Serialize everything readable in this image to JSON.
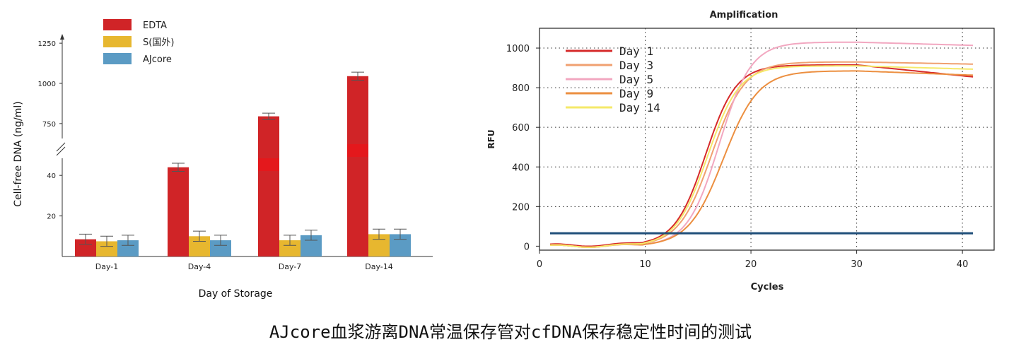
{
  "caption": "AJcore血浆游离DNA常温保存管对cfDNA保存稳定性时间的测试",
  "chart_data": [
    {
      "type": "bar",
      "title": "",
      "xlabel": "Day of Storage",
      "ylabel": "Cell-free DNA  (ng/ml)",
      "categories": [
        "Day-1",
        "Day-4",
        "Day-7",
        "Day-14"
      ],
      "axis_break": true,
      "lower_ticks": [
        "20",
        "40"
      ],
      "upper_ticks": [
        "750",
        "1000",
        "1250"
      ],
      "series": [
        {
          "name": "EDTA",
          "color": "#d02427",
          "values": [
            8.5,
            44,
            795,
            1045
          ],
          "errors": [
            2.5,
            2,
            20,
            25
          ]
        },
        {
          "name": "S(国外)",
          "color": "#e7b72f",
          "values": [
            7.5,
            10,
            8,
            11
          ],
          "errors": [
            2.5,
            2.5,
            2.5,
            2.5
          ]
        },
        {
          "name": "AJcore",
          "color": "#5b9bc4",
          "values": [
            8,
            8,
            10.5,
            11
          ],
          "errors": [
            2.5,
            2.5,
            2.5,
            2.5
          ]
        }
      ],
      "legend_position": "top-left"
    },
    {
      "type": "line",
      "title": "Amplification",
      "xlabel": "Cycles",
      "ylabel": "RFU",
      "x_ticks": [
        "0",
        "10",
        "20",
        "30",
        "40"
      ],
      "y_ticks": [
        "0",
        "200",
        "400",
        "600",
        "800",
        "1000"
      ],
      "xlim": [
        0,
        43
      ],
      "ylim": [
        -20,
        1100
      ],
      "grid": true,
      "legend_position": "top-left",
      "threshold": {
        "value": 65,
        "color": "#1f4e79"
      },
      "series": [
        {
          "name": "Day 1",
          "color": "#d62a2a",
          "baseline": 5,
          "plateau": 915,
          "midpoint": 15.7,
          "slope": 1.45,
          "drift": -1.1
        },
        {
          "name": "Day 3",
          "color": "#f0a070",
          "baseline": 0,
          "plateau": 930,
          "midpoint": 16.3,
          "slope": 1.55,
          "drift": -0.2
        },
        {
          "name": "Day 5",
          "color": "#f2a7c0",
          "baseline": 0,
          "plateau": 1030,
          "midpoint": 17.0,
          "slope": 1.5,
          "drift": -0.3
        },
        {
          "name": "Day 9",
          "color": "#ec8f40",
          "baseline": 0,
          "plateau": 885,
          "midpoint": 17.4,
          "slope": 1.65,
          "drift": -0.4
        },
        {
          "name": "Day 14",
          "color": "#f5e96a",
          "baseline": 0,
          "plateau": 910,
          "midpoint": 15.9,
          "slope": 1.5,
          "drift": -0.3
        }
      ]
    }
  ]
}
